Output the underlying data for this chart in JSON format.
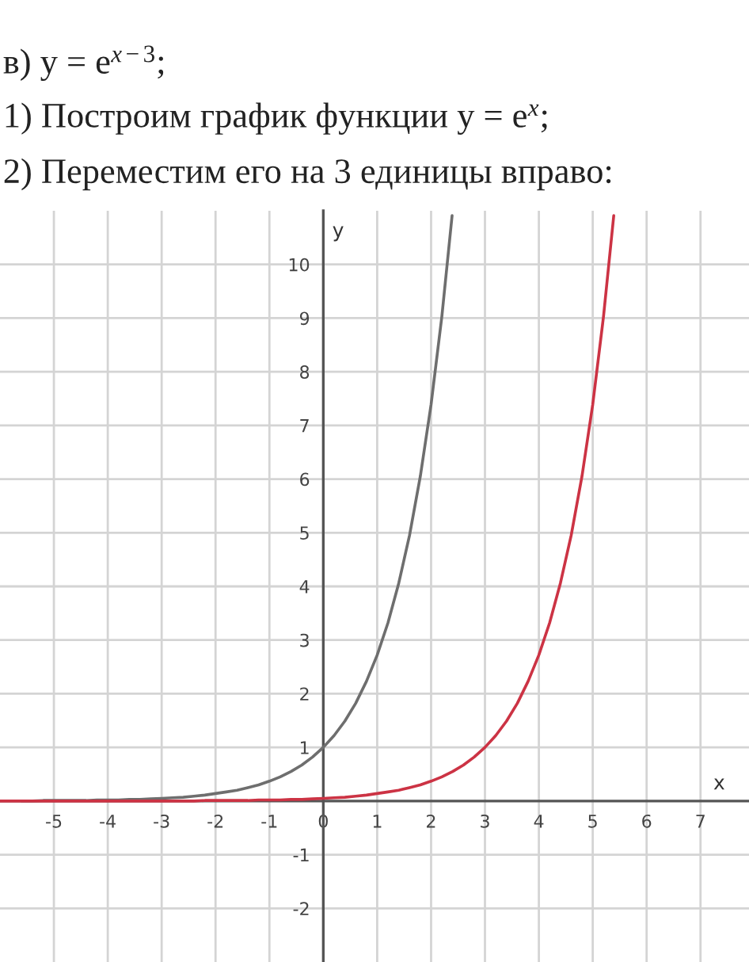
{
  "chart_data": {
    "type": "line",
    "title": "в) y = e$^{x−3}$;",
    "subtitle": "1) Построим график функции y = e$^{x}$;",
    "annotations": [
      "2) Переместим его на 3 единицы вправо:"
    ],
    "xlabel": "x",
    "ylabel": "y",
    "xlim": [
      -6,
      7.9
    ],
    "ylim": [
      -3,
      11
    ],
    "xticks": [
      -5,
      -4,
      -3,
      -2,
      -1,
      0,
      1,
      2,
      3,
      4,
      5,
      6,
      7
    ],
    "yticks": [
      -2,
      -1,
      1,
      2,
      3,
      4,
      5,
      6,
      7,
      8,
      9,
      10
    ],
    "grid": true,
    "marker": "none",
    "line_style": "solid",
    "series": [
      {
        "color": "#6e6e6e",
        "x": [
          -5.6,
          -5.4,
          -5.2,
          -5.0,
          -4.8,
          -4.6,
          -4.4,
          -4.2,
          -4.0,
          -3.8,
          -3.6,
          -3.4,
          -3.2,
          -3.0,
          -2.8,
          -2.6,
          -2.4,
          -2.2,
          -2.0,
          -1.8,
          -1.6,
          -1.4,
          -1.2,
          -1.0,
          -0.8,
          -0.6,
          -0.4,
          -0.2,
          0.0,
          0.2,
          0.4,
          0.6,
          0.8,
          1.0,
          1.2,
          1.4,
          1.6,
          1.8,
          2.0,
          2.2,
          2.39
        ],
        "values": [
          0.0,
          0.0,
          0.01,
          0.01,
          0.01,
          0.01,
          0.01,
          0.02,
          0.02,
          0.02,
          0.03,
          0.03,
          0.04,
          0.05,
          0.06,
          0.07,
          0.09,
          0.11,
          0.14,
          0.17,
          0.2,
          0.25,
          0.3,
          0.37,
          0.45,
          0.55,
          0.67,
          0.82,
          1.0,
          1.22,
          1.49,
          1.82,
          2.23,
          2.72,
          3.32,
          4.06,
          4.95,
          6.05,
          7.39,
          9.03,
          10.91
        ]
      },
      {
        "color": "#cc3344",
        "x": [
          -6.0,
          -5.6,
          -5.2,
          -4.8,
          -4.4,
          -4.0,
          -3.6,
          -3.2,
          -3.0,
          -2.8,
          -2.6,
          -2.4,
          -2.2,
          -2.0,
          -1.8,
          -1.6,
          -1.4,
          -1.2,
          -1.0,
          -0.8,
          -0.6,
          -0.4,
          -0.2,
          0.0,
          0.2,
          0.4,
          0.6,
          0.8,
          1.0,
          1.2,
          1.4,
          1.6,
          1.8,
          2.0,
          2.2,
          2.4,
          2.6,
          2.8,
          3.0,
          3.2,
          3.4,
          3.6,
          3.8,
          4.0,
          4.2,
          4.4,
          4.6,
          4.8,
          5.0,
          5.2,
          5.39
        ],
        "values": [
          0.0,
          0.0,
          0.0,
          0.0,
          0.0,
          0.0,
          0.0,
          0.0,
          0.0,
          0.0,
          0.0,
          0.0,
          0.01,
          0.01,
          0.01,
          0.01,
          0.01,
          0.02,
          0.02,
          0.02,
          0.03,
          0.03,
          0.04,
          0.05,
          0.06,
          0.07,
          0.09,
          0.11,
          0.14,
          0.17,
          0.2,
          0.25,
          0.3,
          0.37,
          0.45,
          0.55,
          0.67,
          0.82,
          1.0,
          1.22,
          1.49,
          1.82,
          2.23,
          2.72,
          3.32,
          4.06,
          4.95,
          6.05,
          7.39,
          9.03,
          10.91
        ]
      }
    ]
  }
}
